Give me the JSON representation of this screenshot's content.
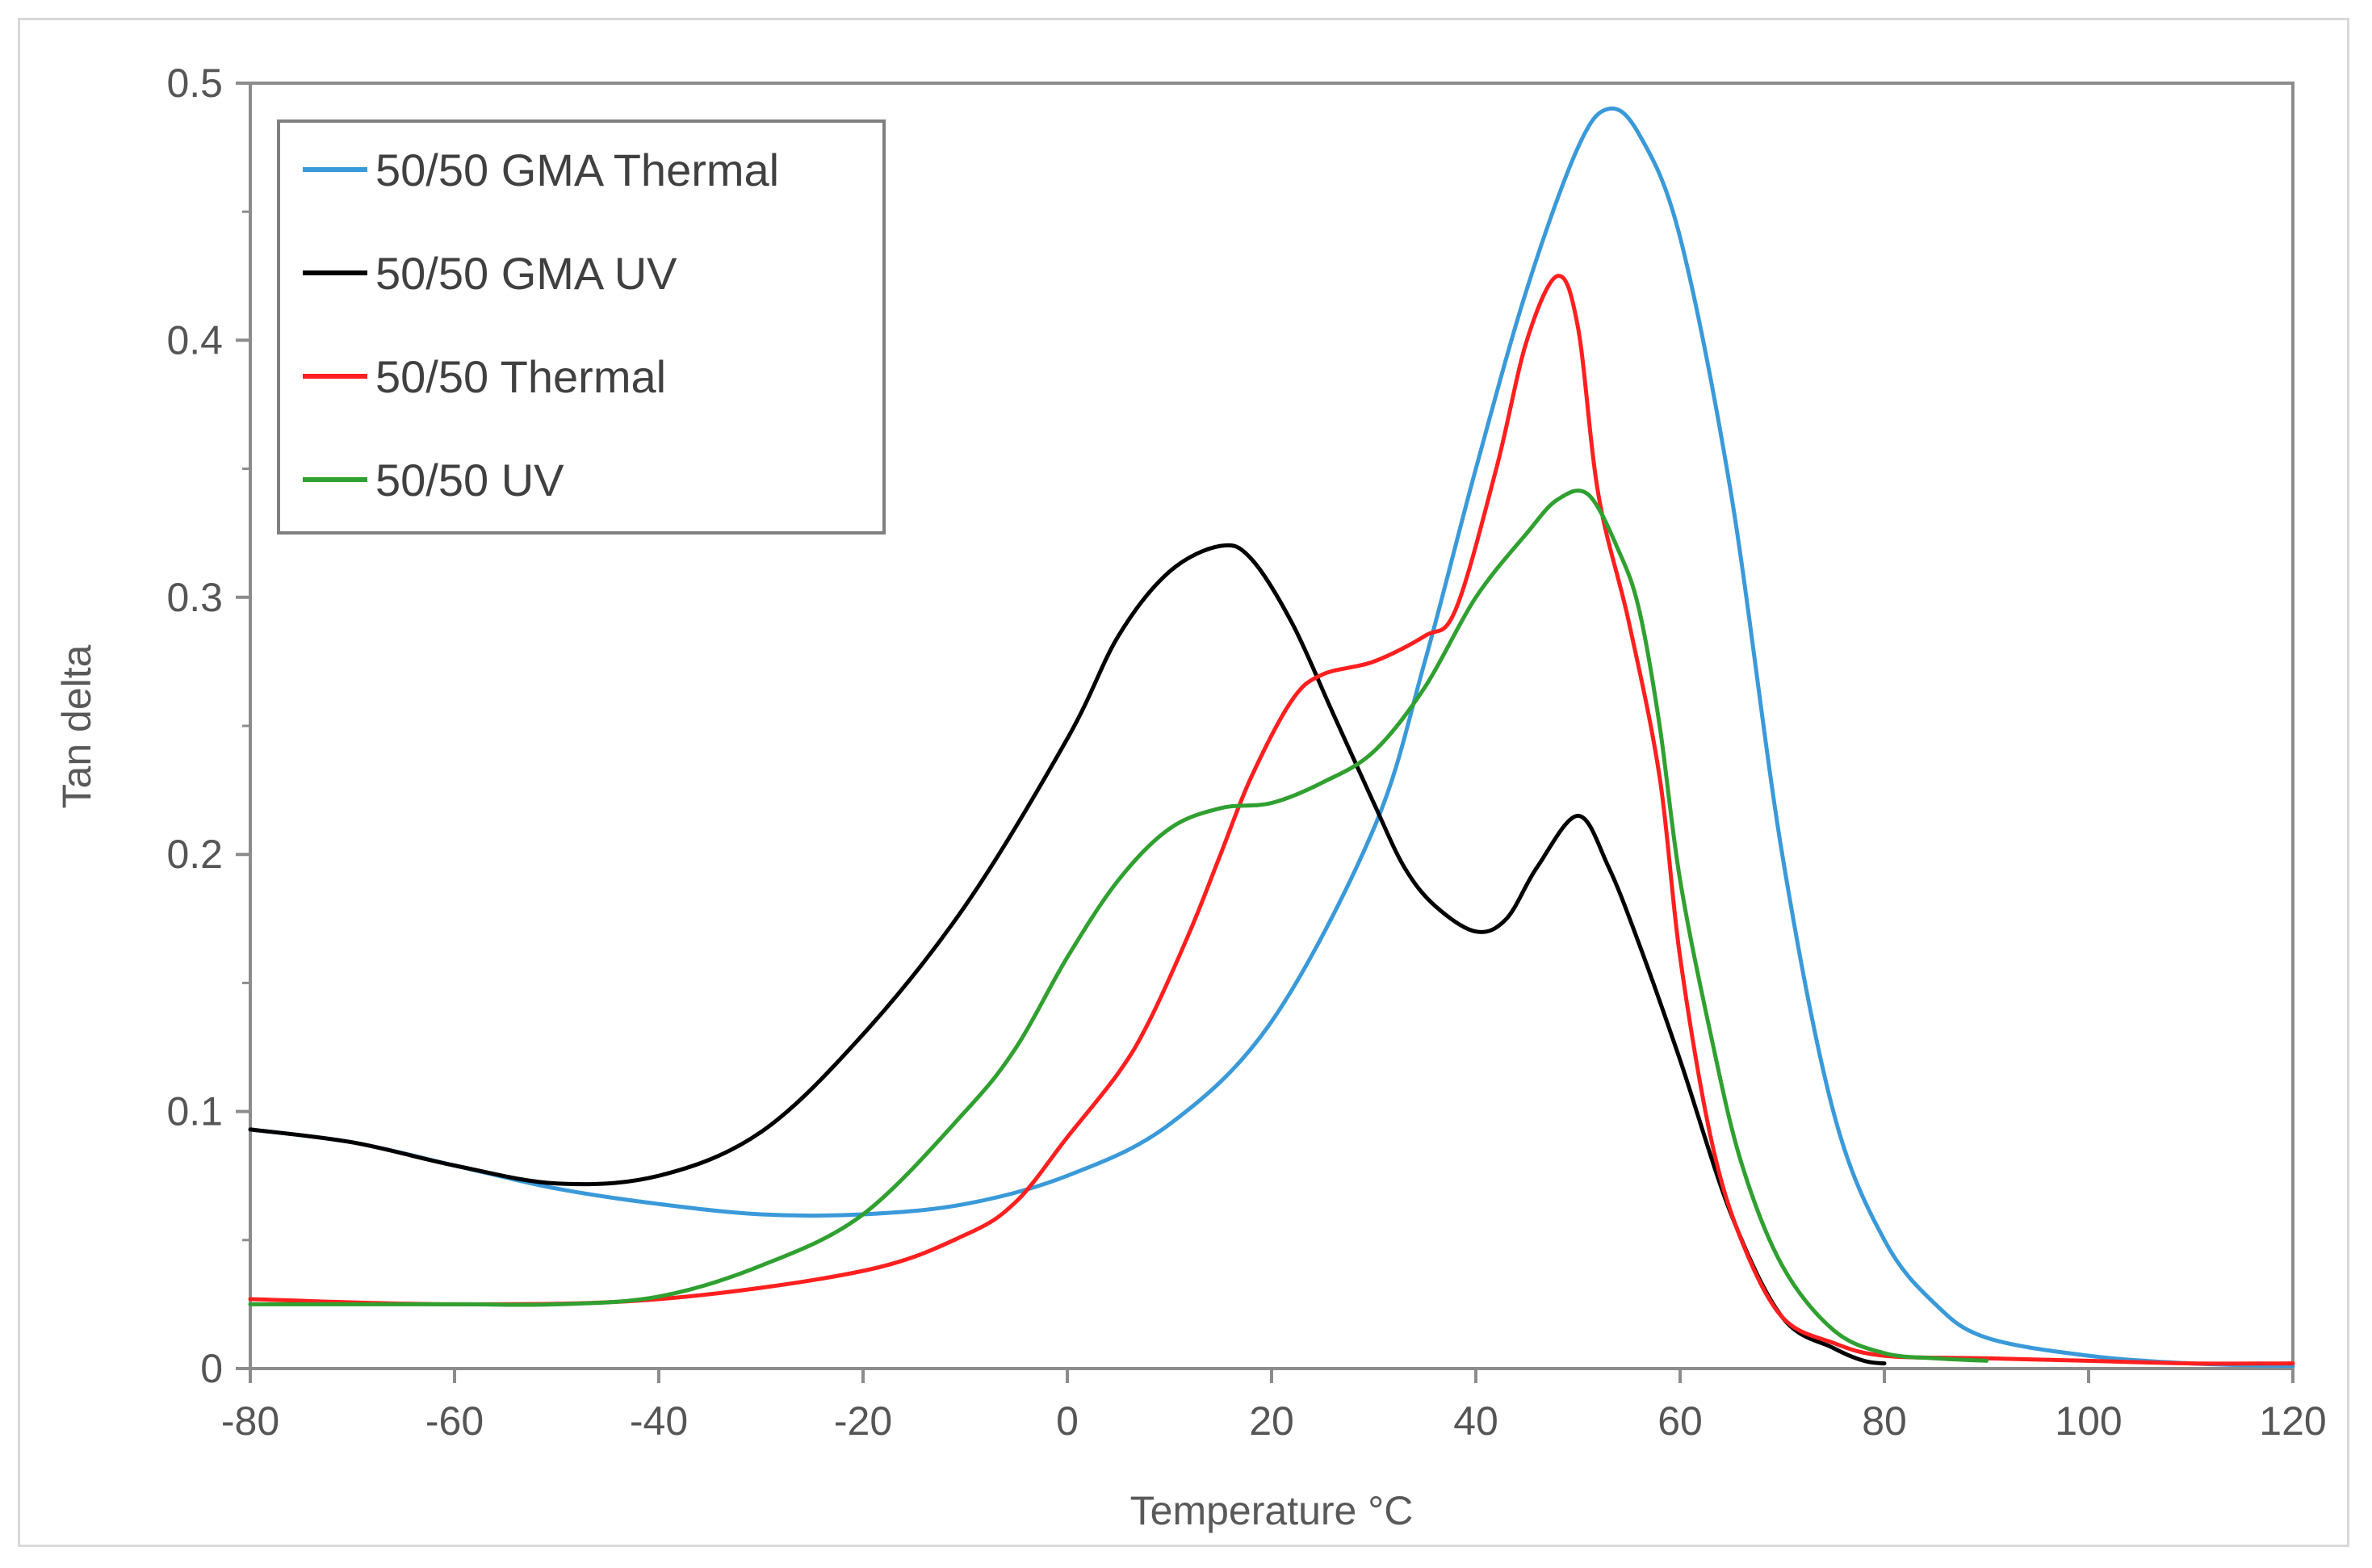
{
  "chart_data": {
    "type": "line",
    "title": "",
    "xlabel": "Temperature °C",
    "ylabel": "Tan delta",
    "xlim": [
      -80,
      120
    ],
    "ylim": [
      0,
      0.5
    ],
    "xticks": [
      -80,
      -60,
      -40,
      -20,
      0,
      20,
      40,
      60,
      80,
      100,
      120
    ],
    "yticks": [
      0,
      0.1,
      0.2,
      0.3,
      0.4,
      0.5
    ],
    "xtick_labels": [
      "-80",
      "-60",
      "-40",
      "-20",
      "0",
      "20",
      "40",
      "60",
      "80",
      "100",
      "120"
    ],
    "ytick_labels": [
      "0",
      "0.1",
      "0.2",
      "0.3",
      "0.4",
      "0.5"
    ],
    "grid": false,
    "legend_position": "top-left",
    "series": [
      {
        "name": "50/50 GMA Thermal",
        "color": "#3a9ad9",
        "x": [
          -80,
          -70,
          -60,
          -50,
          -40,
          -30,
          -20,
          -10,
          0,
          10,
          20,
          30,
          35,
          40,
          45,
          50,
          53,
          56,
          60,
          65,
          70,
          75,
          80,
          85,
          90,
          100,
          110,
          120
        ],
        "y": [
          0.093,
          0.088,
          0.079,
          0.07,
          0.064,
          0.06,
          0.06,
          0.064,
          0.075,
          0.095,
          0.135,
          0.21,
          0.275,
          0.35,
          0.42,
          0.475,
          0.49,
          0.48,
          0.44,
          0.34,
          0.2,
          0.1,
          0.05,
          0.025,
          0.012,
          0.005,
          0.002,
          0.001
        ]
      },
      {
        "name": "50/50 GMA UV",
        "color": "#000000",
        "x": [
          -80,
          -70,
          -60,
          -50,
          -40,
          -30,
          -20,
          -10,
          0,
          5,
          10,
          15,
          18,
          22,
          26,
          30,
          33,
          36,
          40,
          43,
          46,
          50,
          53,
          56,
          60,
          65,
          70,
          75,
          78,
          80
        ],
        "y": [
          0.093,
          0.088,
          0.079,
          0.072,
          0.075,
          0.092,
          0.13,
          0.18,
          0.245,
          0.285,
          0.31,
          0.32,
          0.315,
          0.29,
          0.255,
          0.22,
          0.195,
          0.18,
          0.17,
          0.175,
          0.195,
          0.215,
          0.195,
          0.165,
          0.12,
          0.06,
          0.02,
          0.008,
          0.003,
          0.002
        ]
      },
      {
        "name": "50/50 Thermal",
        "color": "#ff1f1f",
        "x": [
          -80,
          -60,
          -40,
          -20,
          -10,
          -5,
          0,
          5,
          8,
          12,
          15,
          18,
          22,
          25,
          30,
          35,
          38,
          42,
          45,
          48,
          50,
          52,
          55,
          58,
          60,
          63,
          66,
          70,
          75,
          80,
          90,
          100,
          110,
          120
        ],
        "y": [
          0.027,
          0.025,
          0.027,
          0.038,
          0.052,
          0.065,
          0.09,
          0.115,
          0.135,
          0.17,
          0.2,
          0.23,
          0.26,
          0.27,
          0.275,
          0.285,
          0.295,
          0.35,
          0.4,
          0.425,
          0.405,
          0.34,
          0.29,
          0.23,
          0.16,
          0.09,
          0.05,
          0.02,
          0.01,
          0.005,
          0.004,
          0.003,
          0.002,
          0.002
        ]
      },
      {
        "name": "50/50 UV",
        "color": "#30a030",
        "x": [
          -80,
          -60,
          -50,
          -40,
          -30,
          -20,
          -10,
          -5,
          0,
          5,
          10,
          15,
          20,
          25,
          30,
          35,
          40,
          45,
          48,
          51,
          54,
          56,
          58,
          60,
          63,
          66,
          70,
          75,
          80,
          85,
          90
        ],
        "y": [
          0.025,
          0.025,
          0.025,
          0.028,
          0.04,
          0.06,
          0.1,
          0.125,
          0.16,
          0.19,
          0.21,
          0.218,
          0.22,
          0.228,
          0.24,
          0.265,
          0.3,
          0.325,
          0.338,
          0.34,
          0.318,
          0.295,
          0.25,
          0.19,
          0.13,
          0.08,
          0.04,
          0.015,
          0.006,
          0.004,
          0.003
        ]
      }
    ]
  }
}
